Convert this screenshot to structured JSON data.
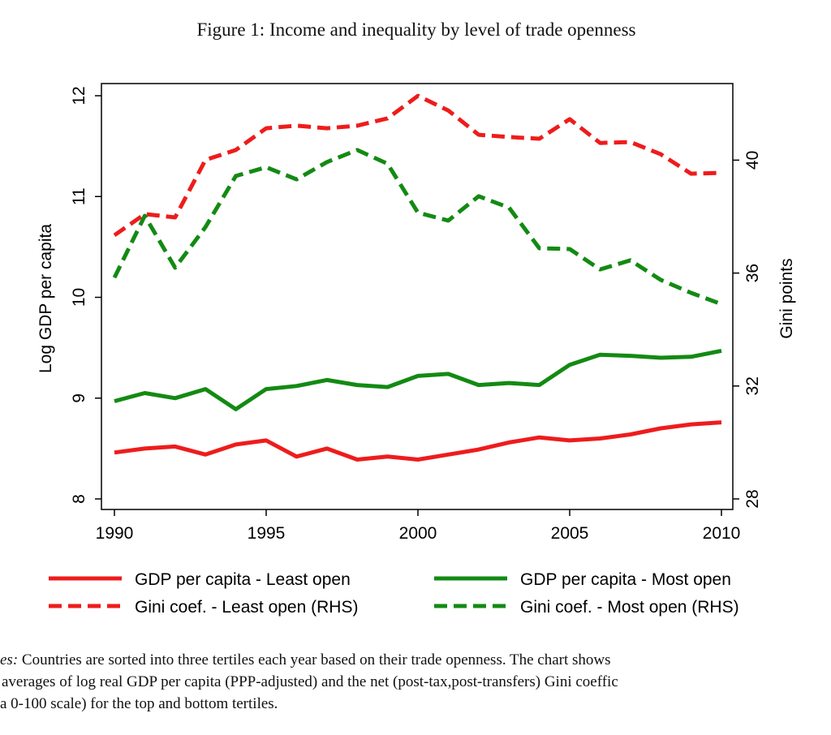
{
  "figure_title": "Figure 1: Income and inequality by level of trade openness",
  "chart_data": {
    "type": "line",
    "title": "",
    "xlabel": "",
    "ylabel": "Log GDP per capita",
    "y2label": "Gini points",
    "x": [
      1990,
      1991,
      1992,
      1993,
      1994,
      1995,
      1996,
      1997,
      1998,
      1999,
      2000,
      2001,
      2002,
      2003,
      2004,
      2005,
      2006,
      2007,
      2008,
      2009,
      2010
    ],
    "xlim": [
      1990,
      2010
    ],
    "xticks": [
      "1990",
      "1995",
      "2000",
      "2005",
      "2010"
    ],
    "ylim": [
      8,
      12
    ],
    "yticks": [
      "8",
      "9",
      "10",
      "11",
      "12"
    ],
    "y2lim": [
      28,
      42.3
    ],
    "y2ticks": [
      "28",
      "32",
      "36",
      "40"
    ],
    "grid": false,
    "legend_placement": "bottom",
    "series": [
      {
        "name": "GDP per capita - Least open",
        "axis": "left",
        "color": "#ee1c1c",
        "style": "solid",
        "values": [
          8.46,
          8.5,
          8.52,
          8.44,
          8.54,
          8.58,
          8.42,
          8.5,
          8.39,
          8.42,
          8.39,
          8.44,
          8.49,
          8.56,
          8.61,
          8.58,
          8.6,
          8.64,
          8.7,
          8.74,
          8.76
        ]
      },
      {
        "name": "GDP per capita - Most open",
        "axis": "left",
        "color": "#138a13",
        "style": "solid",
        "values": [
          8.97,
          9.05,
          9.0,
          9.09,
          8.89,
          9.09,
          9.12,
          9.18,
          9.13,
          9.11,
          9.22,
          9.24,
          9.13,
          9.15,
          9.13,
          9.33,
          9.43,
          9.42,
          9.4,
          9.41,
          9.47
        ]
      },
      {
        "name": "Gini coef. - Least open (RHS)",
        "axis": "right",
        "color": "#ee1c1c",
        "style": "dashed",
        "values": [
          37.34,
          38.09,
          37.97,
          40.01,
          40.36,
          41.13,
          41.22,
          41.13,
          41.22,
          41.48,
          42.28,
          41.76,
          40.9,
          40.82,
          40.76,
          41.45,
          40.61,
          40.64,
          40.21,
          39.52,
          39.55
        ]
      },
      {
        "name": "Gini coef. - Most open (RHS)",
        "axis": "right",
        "color": "#138a13",
        "style": "dashed",
        "values": [
          35.84,
          38.03,
          36.19,
          37.63,
          39.44,
          39.75,
          39.32,
          39.93,
          40.36,
          39.87,
          38.14,
          37.86,
          38.72,
          38.32,
          36.88,
          36.85,
          36.13,
          36.45,
          35.76,
          35.3,
          34.9
        ]
      }
    ]
  },
  "notes": {
    "label": "es:",
    "lines": [
      "Countries are sorted into three tertiles each year based on their trade openness. The chart shows",
      "averages of log real GDP per capita (PPP-adjusted) and the net (post-tax,post-transfers) Gini coeffic",
      "a 0-100 scale) for the top and bottom tertiles."
    ]
  }
}
